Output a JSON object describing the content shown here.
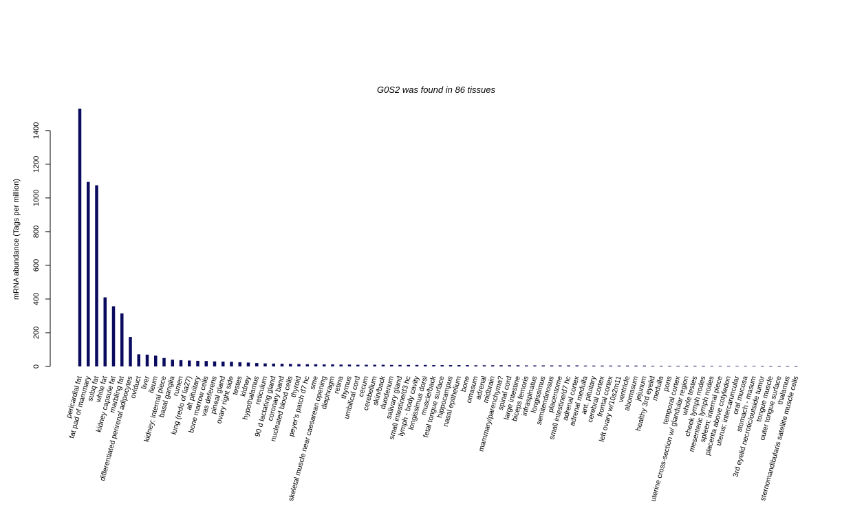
{
  "chart_data": {
    "type": "bar",
    "title": "G0S2  was found in  86  tissues",
    "xlabel": "",
    "ylabel": "mRNA abundance (Tags per million)",
    "ylim": [
      0,
      1530
    ],
    "yticks": [
      0,
      200,
      400,
      600,
      800,
      1000,
      1200,
      1400
    ],
    "bar_color": "#0a0a5e",
    "grid": false,
    "categories": [
      "pericardial fat",
      "fat pad of mammary",
      "subq fat",
      "white fat",
      "kidney capsule fat",
      "marbling fat",
      "differentiated perirenal adipocytes",
      "oviduct",
      "liver",
      "ileum",
      "kidney; internal piece",
      "basal ganglia",
      "rumen",
      "lung (redo of lia27)",
      "alt pituitary",
      "bone marrow cells",
      "vas deferens",
      "pineal gland",
      "ovary right side",
      "testes",
      "kidney",
      "hypothalamus",
      "reticulum",
      "90 d lactating gland",
      "coronary band",
      "nucleated blood cells",
      "thyroid",
      "peyer's patch d7 hc",
      "sme",
      "skeletal muscle near caesarean opening",
      "diaphragm",
      "retina",
      "thymus",
      "umbilical cord",
      "cecum",
      "cerebellum",
      "skin/back",
      "duodenum",
      "salivary gland",
      "small intestine/d3 hc",
      "lymph - body cavity",
      "longissimus dorsi",
      "muscle/back",
      "fetal tongue surface",
      "hippocampus",
      "nasal epithelium",
      "bone",
      "omasum",
      "adrenal",
      "midbrain",
      "mammary/parenchyma?",
      "spinal cord",
      "large intestine",
      "biceps femoris",
      "infraspinatus",
      "longissimus",
      "semitendinosus",
      "placentome",
      "small intestine/d7 hc",
      "adrenal cortex",
      "adrenal medulla",
      "ant. pituitary",
      "cerebral cortex",
      "frontal cortex",
      "left ovary w/10s2m11",
      "ventricle",
      "abomasum",
      "jejunum",
      "healthy 3rd eyelid",
      "medulla",
      "pons",
      "temporal cortex",
      "uterine cross-section w/ glandular region",
      "whole testes",
      "cheek lymph nodes",
      "mesenteric lymph nodes",
      "spleen; internal piece",
      "placenta above cotyledon",
      "uterus; intercaruncular",
      "oral mucosa",
      "stomach - masum",
      "3rd eyelid necrotic/outside tumor",
      "tongue muscle",
      "outer tongue surface",
      "thalamus",
      "sternomandibularis satellite muscle cells"
    ],
    "values": [
      1530,
      1095,
      1075,
      410,
      357,
      315,
      175,
      72,
      70,
      64,
      50,
      40,
      37,
      35,
      33,
      32,
      30,
      29,
      28,
      25,
      23,
      20,
      18,
      17,
      16,
      15,
      14,
      13,
      13,
      12,
      12,
      11,
      11,
      10,
      10,
      10,
      10,
      9,
      9,
      9,
      9,
      9,
      8,
      8,
      8,
      8,
      8,
      7,
      7,
      7,
      7,
      7,
      7,
      6,
      6,
      6,
      6,
      6,
      6,
      6,
      5,
      5,
      5,
      5,
      5,
      5,
      5,
      5,
      4,
      4,
      4,
      4,
      4,
      4,
      4,
      3,
      3,
      3,
      3,
      3,
      3,
      2,
      2,
      2,
      2,
      1
    ]
  }
}
